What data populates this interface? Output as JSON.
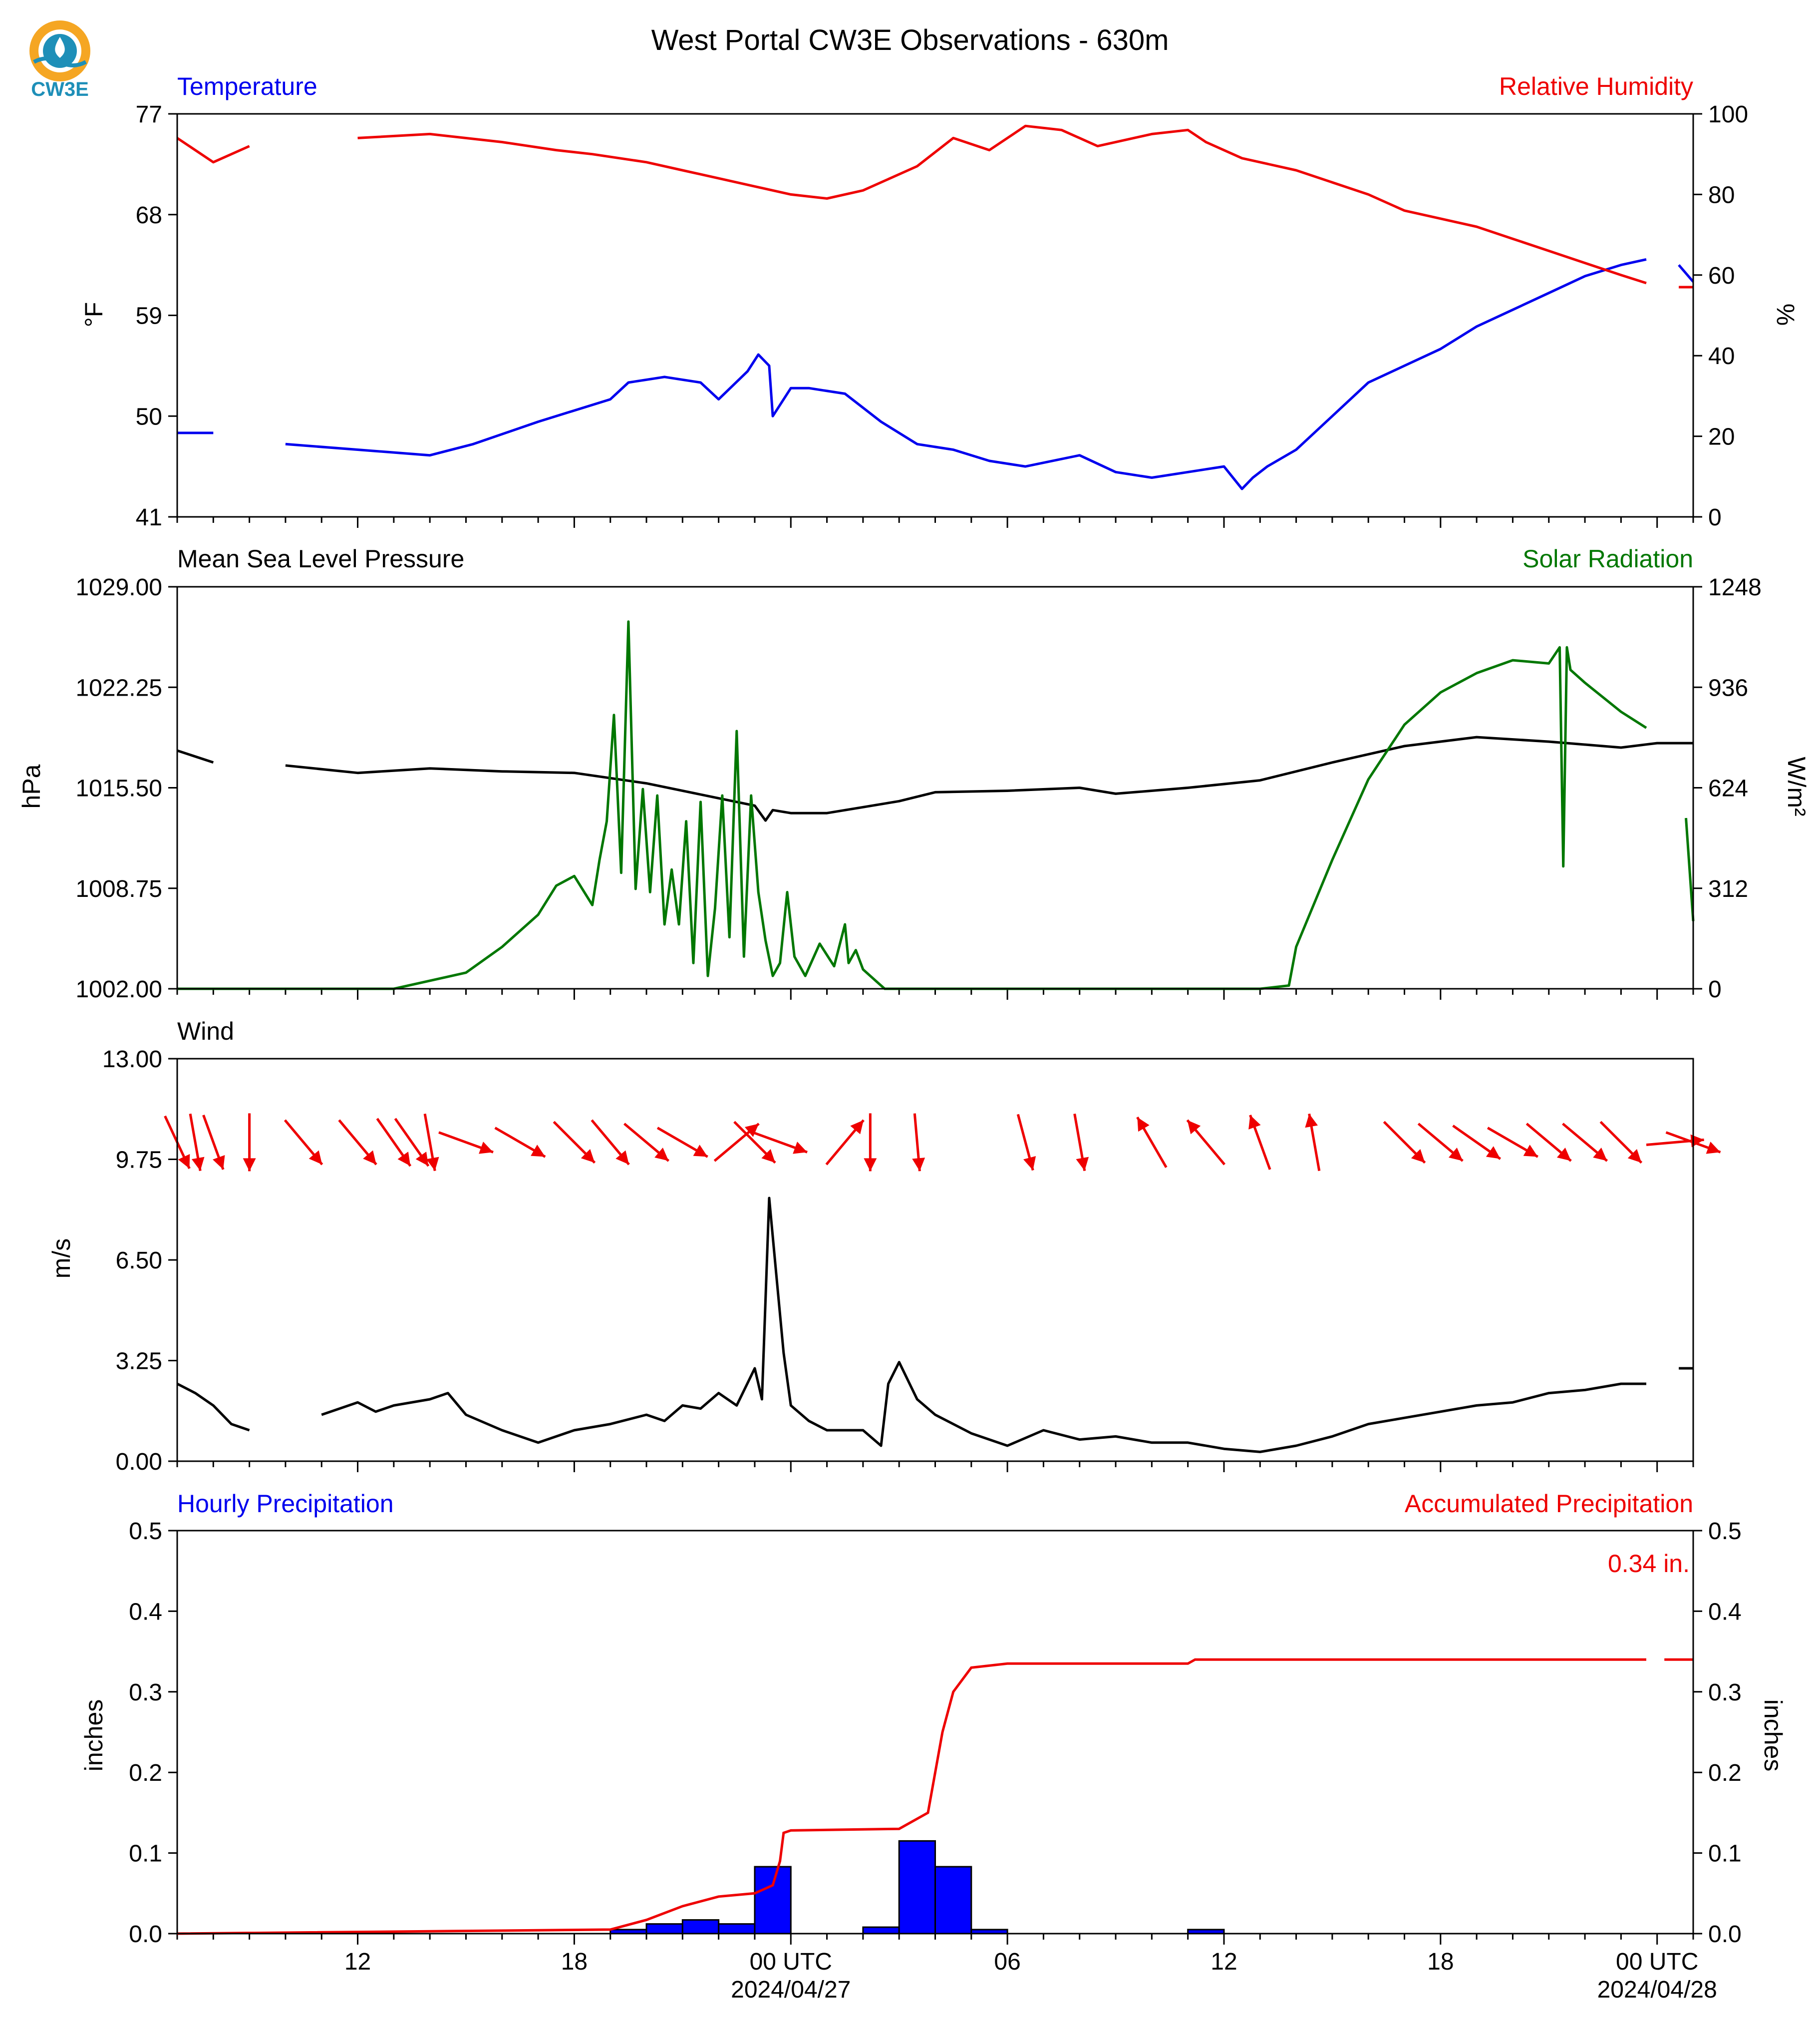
{
  "page": {
    "title": "West Portal CW3E Observations - 630m",
    "logo_text": "CW3E"
  },
  "colors": {
    "blue": "#0000ee",
    "red": "#ee0000",
    "green": "#007700",
    "black": "#000000",
    "bar_fill": "#0000ff",
    "logo_orange": "#f5a623",
    "logo_blue": "#1e8fb8"
  },
  "x_axis": {
    "range_hours": [
      -17,
      25
    ],
    "ticks": [
      {
        "h": -12,
        "label": "12",
        "date": ""
      },
      {
        "h": -6,
        "label": "18",
        "date": ""
      },
      {
        "h": 0,
        "label": "00 UTC",
        "date": "2024/04/27"
      },
      {
        "h": 6,
        "label": "06",
        "date": ""
      },
      {
        "h": 12,
        "label": "12",
        "date": ""
      },
      {
        "h": 18,
        "label": "18",
        "date": ""
      },
      {
        "h": 24,
        "label": "00 UTC",
        "date": "2024/04/28"
      }
    ]
  },
  "chart_data": [
    {
      "type": "line",
      "panel": "temperature-humidity",
      "left_title": "Temperature",
      "right_title": "Relative Humidity",
      "ylabel": "°F",
      "ylabel_right": "%",
      "ylim": [
        41,
        77
      ],
      "yticks": [
        "77",
        "68",
        "59",
        "50",
        "41"
      ],
      "ylim_right": [
        0,
        100
      ],
      "yticks_right": [
        "100",
        "80",
        "60",
        "40",
        "20",
        "0"
      ],
      "series": [
        {
          "name": "Temperature",
          "axis": "left",
          "color": "#0000ee",
          "x": [
            -17,
            -16,
            -15,
            -14,
            -12,
            -10,
            -8.8,
            -7,
            -5,
            -4.5,
            -3.5,
            -2.5,
            -2,
            -1.2,
            -0.9,
            -0.6,
            -0.5,
            0,
            0.5,
            1.5,
            2.5,
            3.5,
            4.5,
            5.5,
            6.5,
            8,
            9,
            10,
            11,
            12,
            12.5,
            12.8,
            13.2,
            14,
            15,
            16,
            17,
            18,
            19,
            20,
            21,
            22,
            23,
            23.7,
            24.2,
            24.6,
            25
          ],
          "y": [
            48.5,
            48.5,
            null,
            47.5,
            47,
            46.5,
            47.5,
            49.5,
            51.5,
            53,
            53.5,
            53,
            51.5,
            54,
            55.5,
            54.5,
            50,
            52.5,
            52.5,
            52,
            49.5,
            47.5,
            47,
            46,
            45.5,
            46.5,
            45,
            44.5,
            45,
            45.5,
            43.5,
            44.5,
            45.5,
            47,
            50,
            53,
            54.5,
            56,
            58,
            59.5,
            61,
            62.5,
            63.5,
            64,
            null,
            63.5,
            62
          ]
        },
        {
          "name": "Relative Humidity",
          "axis": "right",
          "color": "#ee0000",
          "x": [
            -17,
            -16,
            -15,
            -14,
            -12,
            -10,
            -8,
            -6.5,
            -5.5,
            -4,
            -3,
            -2,
            -1,
            0,
            1,
            2,
            3.5,
            4.5,
            5.5,
            6.5,
            7.5,
            8.5,
            10,
            11,
            11.5,
            12.5,
            14,
            16,
            17,
            18,
            19,
            20,
            21,
            22,
            23,
            23.7,
            24.2,
            24.6,
            25
          ],
          "y": [
            94,
            88,
            92,
            null,
            94,
            95,
            93,
            91,
            90,
            88,
            86,
            84,
            82,
            80,
            79,
            81,
            87,
            94,
            91,
            97,
            96,
            92,
            95,
            96,
            93,
            89,
            86,
            80,
            76,
            74,
            72,
            69,
            66,
            63,
            60,
            58,
            null,
            57,
            57
          ]
        }
      ]
    },
    {
      "type": "line",
      "panel": "pressure-solar",
      "left_title": "Mean Sea Level Pressure",
      "right_title": "Solar Radiation",
      "ylabel": "hPa",
      "ylabel_right": "W/m²",
      "ylim": [
        1002.0,
        1029.0
      ],
      "yticks": [
        "1029.00",
        "1022.25",
        "1015.50",
        "1008.75",
        "1002.00"
      ],
      "ylim_right": [
        0,
        1248
      ],
      "yticks_right": [
        "1248",
        "936",
        "624",
        "312",
        "0"
      ],
      "series": [
        {
          "name": "Mean Sea Level Pressure",
          "axis": "left",
          "color": "#000000",
          "x": [
            -17,
            -16,
            -15,
            -14,
            -12,
            -10,
            -8,
            -6,
            -4,
            -2,
            -1,
            -0.7,
            -0.5,
            0,
            1,
            2,
            3,
            4,
            6,
            8,
            9,
            11,
            13,
            15,
            17,
            19,
            21,
            23,
            24,
            25
          ],
          "y": [
            1018.0,
            1017.2,
            null,
            1017.0,
            1016.5,
            1016.8,
            1016.6,
            1016.5,
            1015.8,
            1014.8,
            1014.3,
            1013.3,
            1014.0,
            1013.8,
            1013.8,
            1014.2,
            1014.6,
            1015.2,
            1015.3,
            1015.5,
            1015.1,
            1015.5,
            1016.0,
            1017.2,
            1018.3,
            1018.9,
            1018.6,
            1018.2,
            1018.5,
            1018.5
          ]
        },
        {
          "name": "Solar Radiation",
          "axis": "right",
          "color": "#007700",
          "x": [
            -17,
            -11,
            -9,
            -8,
            -7,
            -6.5,
            -6,
            -5.5,
            -5.3,
            -5.1,
            -4.9,
            -4.7,
            -4.5,
            -4.3,
            -4.1,
            -3.9,
            -3.7,
            -3.5,
            -3.3,
            -3.1,
            -2.9,
            -2.7,
            -2.5,
            -2.3,
            -2.1,
            -1.9,
            -1.7,
            -1.5,
            -1.3,
            -1.1,
            -0.9,
            -0.7,
            -0.5,
            -0.3,
            -0.1,
            0.1,
            0.4,
            0.8,
            1.2,
            1.5,
            1.6,
            1.8,
            2.0,
            2.4,
            2.6,
            8,
            13,
            13.8,
            14,
            15,
            16,
            17,
            18,
            19,
            20,
            21,
            21.3,
            21.4,
            21.5,
            21.6,
            22,
            23,
            23.7,
            24.6,
            24.8,
            25
          ],
          "y": [
            0,
            0,
            50,
            130,
            230,
            320,
            350,
            260,
            400,
            520,
            850,
            360,
            1140,
            310,
            620,
            300,
            600,
            200,
            370,
            200,
            520,
            80,
            580,
            40,
            250,
            600,
            160,
            800,
            100,
            600,
            300,
            150,
            40,
            80,
            300,
            100,
            40,
            140,
            70,
            200,
            80,
            120,
            60,
            20,
            0,
            0,
            0,
            10,
            130,
            400,
            650,
            820,
            920,
            980,
            1020,
            1010,
            1060,
            380,
            1060,
            990,
            950,
            860,
            810,
            null,
            530,
            210
          ]
        }
      ]
    },
    {
      "type": "line",
      "panel": "wind",
      "left_title": "Wind",
      "ylabel": "m/s",
      "ylim": [
        0.0,
        13.0
      ],
      "yticks": [
        "13.00",
        "9.75",
        "6.50",
        "3.25",
        "0.00"
      ],
      "series": [
        {
          "name": "Wind",
          "axis": "left",
          "color": "#000000",
          "x": [
            -17,
            -16.5,
            -16,
            -15.5,
            -15,
            -14,
            -13,
            -12,
            -11.5,
            -11,
            -10,
            -9.5,
            -9,
            -8,
            -7,
            -6,
            -5,
            -4,
            -3.5,
            -3,
            -2.5,
            -2,
            -1.5,
            -1,
            -0.8,
            -0.6,
            -0.4,
            -0.2,
            0,
            0.5,
            1,
            2,
            2.5,
            2.7,
            3,
            3.5,
            4,
            5,
            6,
            7,
            8,
            9,
            10,
            11,
            12,
            13,
            14,
            15,
            16,
            17,
            18,
            19,
            20,
            21,
            22,
            23,
            23.7,
            24.2,
            24.6,
            25
          ],
          "y": [
            2.5,
            2.2,
            1.8,
            1.2,
            1.0,
            null,
            1.5,
            1.9,
            1.6,
            1.8,
            2.0,
            2.2,
            1.5,
            1.0,
            0.6,
            1.0,
            1.2,
            1.5,
            1.3,
            1.8,
            1.7,
            2.2,
            1.8,
            3.0,
            2.0,
            8.5,
            6.0,
            3.5,
            1.8,
            1.3,
            1.0,
            1.0,
            0.5,
            2.5,
            3.2,
            2.0,
            1.5,
            0.9,
            0.5,
            1.0,
            0.7,
            0.8,
            0.6,
            0.6,
            0.4,
            0.3,
            0.5,
            0.8,
            1.2,
            1.4,
            1.6,
            1.8,
            1.9,
            2.2,
            2.3,
            2.5,
            2.5,
            null,
            3.0,
            3.0
          ]
        }
      ],
      "wind_arrows": {
        "y": 10.3,
        "x": [
          -17,
          -16.5,
          -16,
          -15,
          -13.5,
          -12,
          -11,
          -10.5,
          -10,
          -9,
          -7.5,
          -6,
          -5,
          -4,
          -3,
          -1.5,
          -1,
          -0.3,
          1.5,
          2.2,
          3.5,
          6.5,
          8,
          10,
          11.5,
          13,
          14.5,
          17,
          18,
          19,
          20,
          21,
          22,
          23,
          24.5,
          25
        ],
        "dir": [
          155,
          170,
          160,
          180,
          140,
          140,
          145,
          145,
          170,
          110,
          120,
          135,
          140,
          130,
          120,
          50,
          135,
          110,
          40,
          180,
          175,
          165,
          170,
          330,
          320,
          340,
          350,
          135,
          130,
          125,
          120,
          130,
          130,
          135,
          85,
          110
        ]
      }
    },
    {
      "type": "bar",
      "panel": "precipitation",
      "left_title": "Hourly Precipitation",
      "right_title": "Accumulated Precipitation",
      "annotation": "0.34 in.",
      "ylabel": "inches",
      "ylabel_right": "inches",
      "ylim": [
        0.0,
        0.5
      ],
      "yticks": [
        "0.5",
        "0.4",
        "0.3",
        "0.2",
        "0.1",
        "0.0"
      ],
      "yticks_right": [
        "0.5",
        "0.4",
        "0.3",
        "0.2",
        "0.1",
        "0.0"
      ],
      "hourly": {
        "name": "Hourly Precipitation",
        "bin_start_hours": [
          -5,
          -4,
          -3,
          -2,
          -1,
          2,
          3,
          4,
          5,
          11
        ],
        "values": [
          0.005,
          0.012,
          0.017,
          0.012,
          0.083,
          0.008,
          0.115,
          0.083,
          0.005,
          0.005
        ]
      },
      "accumulated": {
        "name": "Accumulated Precipitation",
        "color": "#ee0000",
        "x": [
          -17,
          -5,
          -4,
          -3,
          -2,
          -1,
          -0.5,
          -0.3,
          -0.2,
          0,
          3,
          3.8,
          4.2,
          4.5,
          5,
          6,
          11,
          11.2,
          23.7,
          null,
          24.2,
          25
        ],
        "y": [
          0.0,
          0.005,
          0.017,
          0.034,
          0.046,
          0.05,
          0.06,
          0.09,
          0.125,
          0.128,
          0.13,
          0.15,
          0.25,
          0.3,
          0.33,
          0.335,
          0.335,
          0.34,
          0.34,
          null,
          0.34,
          0.34
        ]
      }
    }
  ]
}
